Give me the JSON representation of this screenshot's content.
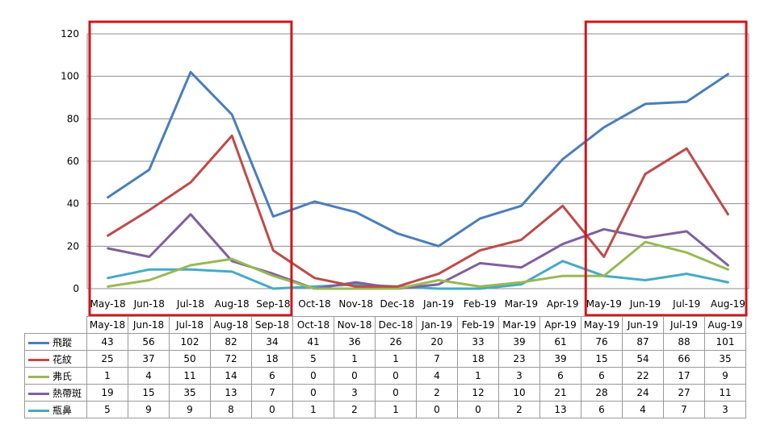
{
  "chart_data": {
    "type": "line",
    "categories": [
      "May-18",
      "Jun-18",
      "Jul-18",
      "Aug-18",
      "Sep-18",
      "Oct-18",
      "Nov-18",
      "Dec-18",
      "Jan-19",
      "Feb-19",
      "Mar-19",
      "Apr-19",
      "May-19",
      "Jun-19",
      "Jul-19",
      "Aug-19"
    ],
    "series": [
      {
        "name": "飛蹤",
        "color": "#4A7EBB",
        "values": [
          43,
          56,
          102,
          82,
          34,
          41,
          36,
          26,
          20,
          33,
          39,
          61,
          76,
          87,
          88,
          101
        ]
      },
      {
        "name": "花紋",
        "color": "#BE4B48",
        "values": [
          25,
          37,
          50,
          72,
          18,
          5,
          1,
          1,
          7,
          18,
          23,
          39,
          15,
          54,
          66,
          35
        ]
      },
      {
        "name": "弗氏",
        "color": "#98B954",
        "values": [
          1,
          4,
          11,
          14,
          6,
          0,
          0,
          0,
          4,
          1,
          3,
          6,
          6,
          22,
          17,
          9
        ]
      },
      {
        "name": "熱帶斑",
        "color": "#7D60A0",
        "values": [
          19,
          15,
          35,
          13,
          7,
          0,
          3,
          0,
          2,
          12,
          10,
          21,
          28,
          24,
          27,
          11
        ]
      },
      {
        "name": "瓶鼻",
        "color": "#46AAC5",
        "values": [
          5,
          9,
          9,
          8,
          0,
          1,
          2,
          1,
          0,
          0,
          2,
          13,
          6,
          4,
          7,
          3
        ]
      }
    ],
    "ylim": [
      0,
      120
    ],
    "yticks": [
      0,
      20,
      40,
      60,
      80,
      100,
      120
    ],
    "grid": true,
    "legend": "data-table",
    "highlights": [
      {
        "from": "May-18",
        "to": "Sep-18",
        "color": "#D0161B"
      },
      {
        "from": "May-19",
        "to": "Aug-19",
        "color": "#D0161B"
      }
    ],
    "title": "",
    "xlabel": "",
    "ylabel": ""
  }
}
